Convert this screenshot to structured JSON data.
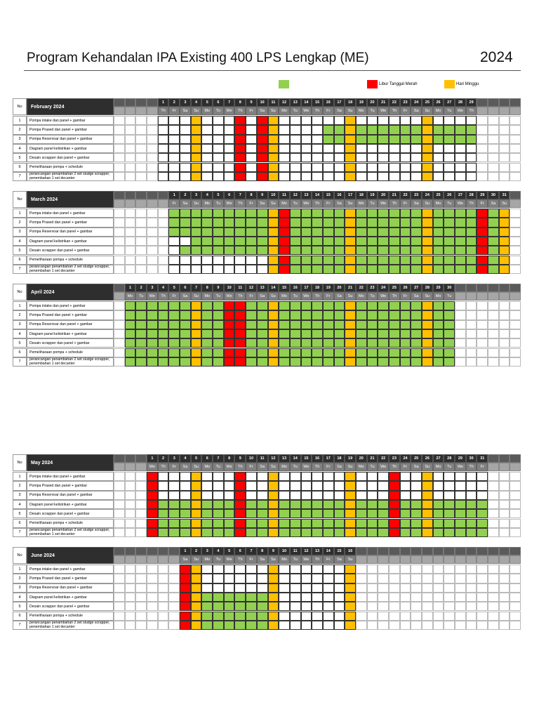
{
  "title": "Program Kehandalan IPA Existing 400 LPS Lengkap (ME)",
  "year": "2024",
  "legend": [
    {
      "color": "#92d050"
    },
    {
      "color": "#ff0000",
      "label": "Libur Tanggal Merah"
    },
    {
      "color": "#ffc000",
      "label": "Hari Minggu"
    }
  ],
  "no_label": "No",
  "months": [
    {
      "name": "February 2024",
      "days": [
        1,
        2,
        3,
        4,
        5,
        6,
        7,
        8,
        9,
        10,
        11,
        12,
        13,
        14,
        15,
        16,
        17,
        18,
        19,
        20,
        21,
        22,
        23,
        24,
        25,
        26,
        27,
        28,
        29
      ],
      "weekdays": [
        "Th",
        "Fr",
        "Sa",
        "Su",
        "Mo",
        "Tu",
        "We",
        "Th",
        "Fr",
        "Sa",
        "Su",
        "Mo",
        "Tu",
        "We",
        "Th",
        "Fr",
        "Sa",
        "Su",
        "Mo",
        "Tu",
        "We",
        "Th",
        "Fr",
        "Sa",
        "Su",
        "Mo",
        "Tu",
        "We",
        "Th"
      ],
      "holidays": [
        8,
        10
      ],
      "sundays": [
        4,
        11,
        18,
        25
      ],
      "tasks": [
        {
          "no": 1,
          "name": "Pompa intake dan panel + gambar"
        },
        {
          "no": 2,
          "name": "Pompa Prased dan panel + gambar",
          "start": 16,
          "end": 29
        },
        {
          "no": 3,
          "name": "Pompa Reservoar dan panel + gambar",
          "start": 16,
          "end": 29
        },
        {
          "no": 4,
          "name": "Diagram panel kelistrikan  + gambar"
        },
        {
          "no": 5,
          "name": "Desain scrapper dan panel + gambar"
        },
        {
          "no": 6,
          "name": "Pemeliharaan pompa + schedule"
        },
        {
          "no": 7,
          "name": "perancangan penambahan 2 set sludge scrapper, penembahan 1 set decanter"
        }
      ]
    },
    {
      "name": "March 2024",
      "days": [
        1,
        2,
        3,
        4,
        5,
        6,
        7,
        8,
        9,
        10,
        11,
        12,
        13,
        14,
        15,
        16,
        17,
        18,
        19,
        20,
        21,
        22,
        23,
        24,
        25,
        26,
        27,
        28,
        29,
        30,
        31
      ],
      "weekdays": [
        "Fr",
        "Sa",
        "Su",
        "Mo",
        "Tu",
        "We",
        "Th",
        "Fr",
        "Sa",
        "Su",
        "Mo",
        "Tu",
        "We",
        "Th",
        "Fr",
        "Sa",
        "Su",
        "Mo",
        "Tu",
        "We",
        "Th",
        "Fr",
        "Sa",
        "Su",
        "Mo",
        "Tu",
        "We",
        "Th",
        "Fr",
        "Sa",
        "Su"
      ],
      "holidays": [
        11,
        29
      ],
      "sundays": [
        10,
        17,
        24,
        31
      ],
      "tasks": [
        {
          "no": 1,
          "name": "Pompa intake dan panel + gambar",
          "start": 1,
          "end": 31
        },
        {
          "no": 2,
          "name": "Pompa Prased dan panel + gambar",
          "start": 1,
          "end": 31
        },
        {
          "no": 3,
          "name": "Pompa Reservoar dan panel + gambar",
          "start": 1,
          "end": 31
        },
        {
          "no": 4,
          "name": "Diagram panel kelistrikan  + gambar",
          "start": 3,
          "end": 31
        },
        {
          "no": 5,
          "name": "Desain scrapper dan panel + gambar",
          "start": 2,
          "end": 31
        },
        {
          "no": 6,
          "name": "Pemeliharaan pompa + schedule",
          "start": 10,
          "end": 31
        },
        {
          "no": 7,
          "name": "perancangan penambahan 2 set sludge scrapper, penembahan 1 set decanter",
          "start": 12,
          "end": 30
        }
      ]
    },
    {
      "name": "April 2024",
      "days": [
        1,
        2,
        3,
        4,
        5,
        6,
        7,
        8,
        9,
        10,
        11,
        12,
        13,
        14,
        15,
        16,
        17,
        18,
        19,
        20,
        21,
        22,
        23,
        24,
        25,
        26,
        27,
        28,
        29,
        30
      ],
      "weekdays": [
        "Mo",
        "Tu",
        "We",
        "Th",
        "Fr",
        "Sa",
        "Su",
        "Mo",
        "Tu",
        "We",
        "Th",
        "Fr",
        "Sa",
        "Su",
        "Mo",
        "Tu",
        "We",
        "Th",
        "Fr",
        "Sa",
        "Su",
        "Mo",
        "Tu",
        "We",
        "Th",
        "Fr",
        "Sa",
        "Su",
        "Mo",
        "Tu"
      ],
      "holidays": [
        10,
        11
      ],
      "sundays": [
        7,
        14,
        21,
        28
      ],
      "tasks": [
        {
          "no": 1,
          "name": "Pompa intake dan panel + gambar",
          "start": 1,
          "end": 30
        },
        {
          "no": 2,
          "name": "Pompa Prased dan panel + gambar",
          "start": 1,
          "end": 30
        },
        {
          "no": 3,
          "name": "Pompa Reservoar dan panel + gambar",
          "start": 1,
          "end": 30
        },
        {
          "no": 4,
          "name": "Diagram panel kelistrikan  + gambar",
          "start": 1,
          "end": 30
        },
        {
          "no": 5,
          "name": "Desain scrapper dan panel + gambar",
          "start": 1,
          "end": 30
        },
        {
          "no": 6,
          "name": "Pemeliharaan pompa + schedule",
          "start": 1,
          "end": 30
        },
        {
          "no": 7,
          "name": "perancangan penambahan 2 set sludge scrapper, penembahan 1 set decanter",
          "start": 1,
          "end": 30
        }
      ]
    },
    {
      "name": "May 2024",
      "days": [
        1,
        2,
        3,
        4,
        5,
        6,
        7,
        8,
        9,
        10,
        11,
        12,
        13,
        14,
        15,
        16,
        17,
        18,
        19,
        20,
        21,
        22,
        23,
        24,
        25,
        26,
        27,
        28,
        29,
        30,
        31
      ],
      "weekdays": [
        "We",
        "Th",
        "Fr",
        "Sa",
        "Su",
        "Mo",
        "Tu",
        "We",
        "Th",
        "Fr",
        "Sa",
        "Su",
        "Mo",
        "Tu",
        "We",
        "Th",
        "Fr",
        "Sa",
        "Su",
        "Mo",
        "Tu",
        "We",
        "Th",
        "Fr",
        "Sa",
        "Su",
        "Mo",
        "Tu",
        "We",
        "Th",
        "Fr"
      ],
      "holidays": [
        1,
        9,
        23
      ],
      "sundays": [
        5,
        12,
        19,
        26
      ],
      "tasks": [
        {
          "no": 1,
          "name": "Pompa intake dan panel + gambar"
        },
        {
          "no": 2,
          "name": "Pompa Prased dan panel + gambar"
        },
        {
          "no": 3,
          "name": "Pompa Reservoar dan panel + gambar"
        },
        {
          "no": 4,
          "name": "Diagram panel kelistrikan  + gambar",
          "start": 2,
          "end": 31
        },
        {
          "no": 5,
          "name": "Desain scrapper dan panel + gambar",
          "start": 2,
          "end": 31
        },
        {
          "no": 6,
          "name": "Pemeliharaan pompa + schedule",
          "start": 2,
          "end": 31
        },
        {
          "no": 7,
          "name": "perancangan penambahan 2 set sludge scrapper, penembahan 1 set decanter",
          "start": 2,
          "end": 31
        }
      ]
    },
    {
      "name": "June 2024",
      "days": [
        1,
        2,
        3,
        4,
        5,
        6,
        7,
        8,
        9,
        10,
        11,
        12,
        13,
        14,
        15,
        16
      ],
      "weekdays": [
        "Sa",
        "Su",
        "Mo",
        "Tu",
        "We",
        "Th",
        "Fr",
        "Sa",
        "Su",
        "Mo",
        "Tu",
        "We",
        "Th",
        "Fr",
        "Sa",
        "Su"
      ],
      "holidays": [
        1
      ],
      "sundays": [
        2,
        9,
        16
      ],
      "tasks": [
        {
          "no": 1,
          "name": "Pompa intake dan panel + gambar"
        },
        {
          "no": 2,
          "name": "Pompa Prased dan panel + gambar"
        },
        {
          "no": 3,
          "name": "Pompa Reservoar dan panel + gambar"
        },
        {
          "no": 4,
          "name": "Diagram panel kelistrikan  + gambar",
          "start": 3,
          "end": 8
        },
        {
          "no": 5,
          "name": "Desain scrapper dan panel + gambar",
          "start": 3,
          "end": 8
        },
        {
          "no": 6,
          "name": "Pemeliharaan pompa + schedule",
          "start": 3,
          "end": 8
        },
        {
          "no": 7,
          "name": "perancangan penambahan 2 set sludge scrapper, penembahan 1 set decanter",
          "start": 3,
          "end": 8
        }
      ]
    }
  ]
}
